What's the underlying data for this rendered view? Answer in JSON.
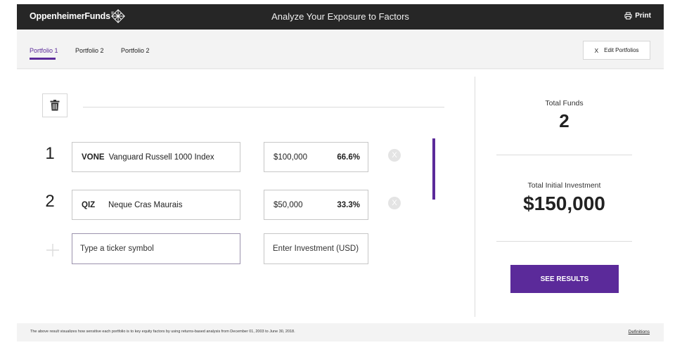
{
  "header": {
    "brand": "OppenheimerFunds",
    "brand_reg": "®",
    "title": "Analyze Your Exposure to Factors",
    "print_label": "Print"
  },
  "tabs": [
    {
      "label": "Portfolio 1",
      "active": true
    },
    {
      "label": "Portfolio 2",
      "active": false
    },
    {
      "label": "Portfolio 2",
      "active": false
    }
  ],
  "edit_portfolios": {
    "icon": "X",
    "label": "Edit Portfolios"
  },
  "holdings": [
    {
      "num": "1",
      "ticker": "VONE",
      "name": "Vanguard Russell 1000 Index",
      "amount": "$100,000",
      "pct": "66.6%",
      "remove": "X"
    },
    {
      "num": "2",
      "ticker": "QIZ",
      "name": "Neque Cras Maurais",
      "amount": "$50,000",
      "pct": "33.3%",
      "remove": "X"
    }
  ],
  "new_entry": {
    "ticker_placeholder": "Type a ticker symbol",
    "amount_placeholder": "Enter Investment (USD)"
  },
  "summary": {
    "total_funds_label": "Total Funds",
    "total_funds_value": "2",
    "total_investment_label": "Total Initial Investment",
    "total_investment_value": "$150,000",
    "see_results_label": "SEE RESULTS"
  },
  "footer": {
    "disclaimer": "The above result visualizes how sensitive each portfolio is to key equity factors by using returns-based analysis from December 01, 2003 to June 30, 2018.",
    "definitions_label": "Definitions"
  },
  "colors": {
    "accent": "#5b2a9a",
    "header_bg": "#262626"
  },
  "icons": [
    "brand-logo-icon",
    "printer-icon",
    "trash-icon",
    "close-icon",
    "remove-icon",
    "plus-icon"
  ]
}
